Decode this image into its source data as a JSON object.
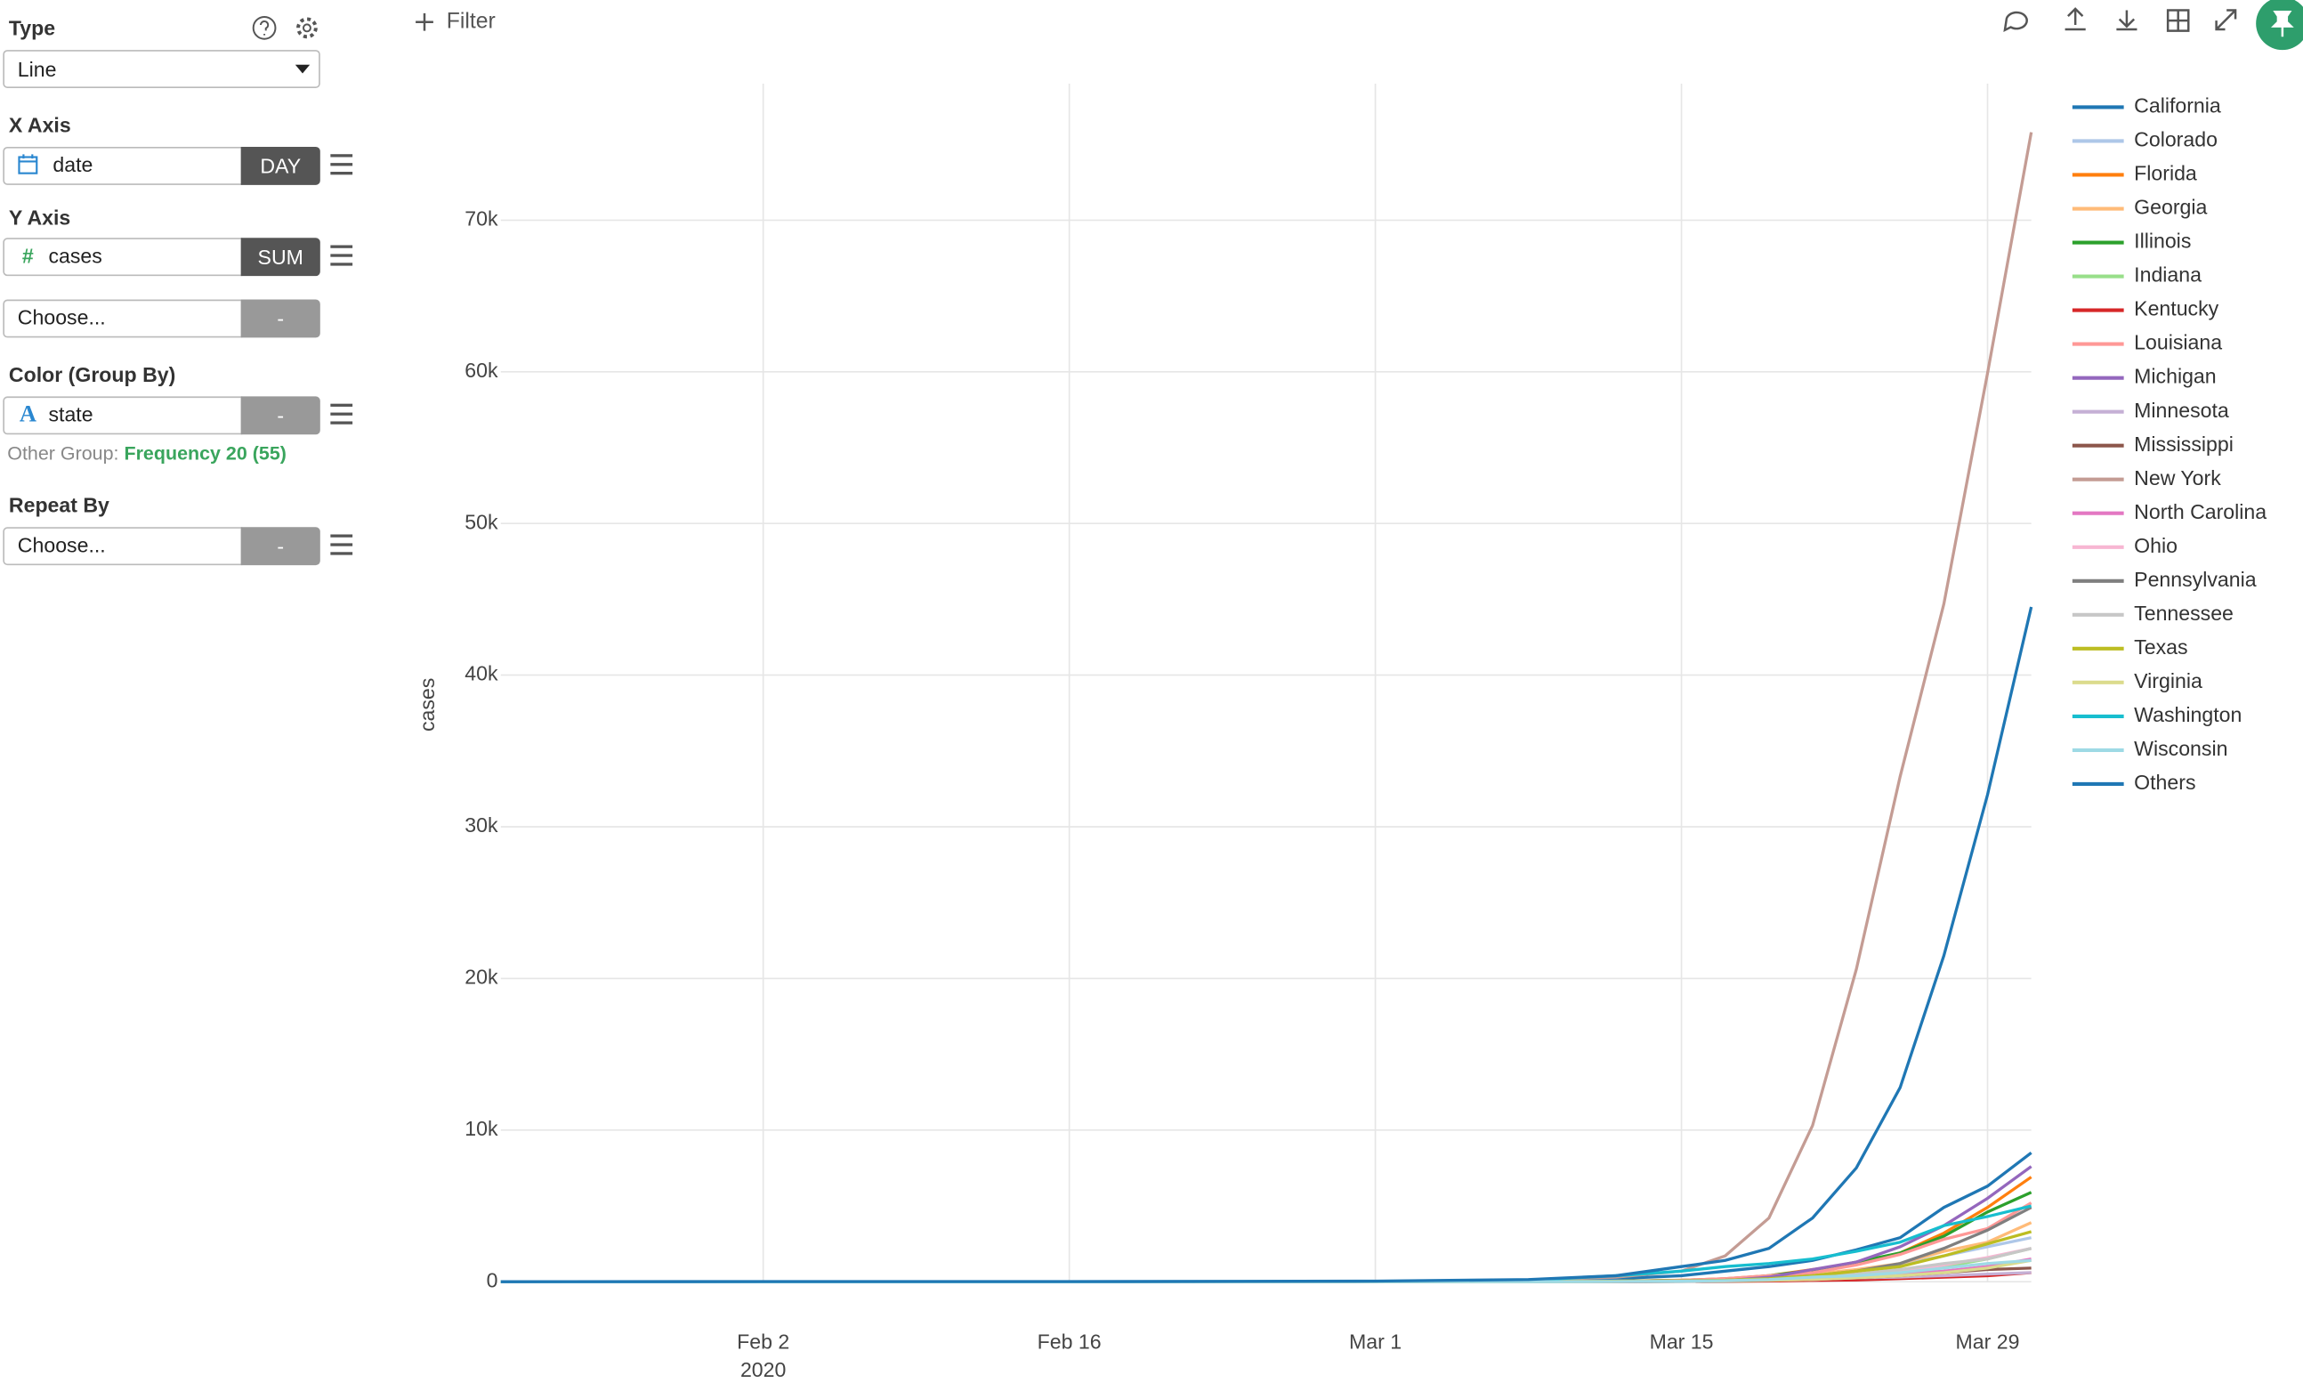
{
  "panel": {
    "type": {
      "label": "Type",
      "value": "Line"
    },
    "x_axis": {
      "label": "X Axis",
      "column": "date",
      "agg": "DAY"
    },
    "y_axis": {
      "label": "Y Axis",
      "icon": "#",
      "column": "cases",
      "agg": "SUM",
      "extra": "Choose...",
      "extra_agg": "-"
    },
    "color": {
      "label": "Color (Group By)",
      "icon": "A",
      "column": "state",
      "agg": "-",
      "other_group_label": "Other Group:",
      "other_group_value": "Frequency 20 (55)"
    },
    "repeat": {
      "label": "Repeat By",
      "column": "Choose...",
      "agg": "-"
    }
  },
  "toolbar": {
    "filter": "Filter"
  },
  "chart_data": {
    "type": "line",
    "y_label": "cases",
    "x": [
      "2020-01-21",
      "2020-02-02",
      "2020-02-16",
      "2020-03-01",
      "2020-03-08",
      "2020-03-12",
      "2020-03-15",
      "2020-03-17",
      "2020-03-19",
      "2020-03-21",
      "2020-03-23",
      "2020-03-25",
      "2020-03-27",
      "2020-03-29",
      "2020-03-31"
    ],
    "xlim": [
      "2020-01-21",
      "2020-03-31"
    ],
    "xticks": [
      {
        "value": "2020-02-02",
        "label": "Feb 2"
      },
      {
        "value": "2020-02-16",
        "label": "Feb 16"
      },
      {
        "value": "2020-03-01",
        "label": "Mar 1"
      },
      {
        "value": "2020-03-15",
        "label": "Mar 15"
      },
      {
        "value": "2020-03-29",
        "label": "Mar 29"
      }
    ],
    "x_year": "2020",
    "ylim": [
      0,
      79000
    ],
    "yticks": [
      0,
      {
        "value": 10000,
        "label": "10k"
      },
      {
        "value": 20000,
        "label": "20k"
      },
      {
        "value": 30000,
        "label": "30k"
      },
      {
        "value": 40000,
        "label": "40k"
      },
      {
        "value": 50000,
        "label": "50k"
      },
      {
        "value": 60000,
        "label": "60k"
      },
      {
        "value": 70000,
        "label": "70k"
      }
    ],
    "grid": true,
    "legend": "right",
    "series": [
      {
        "name": "California",
        "color": "#1f77b4",
        "values": [
          0,
          0,
          0,
          10,
          100,
          200,
          400,
          700,
          1000,
          1400,
          2100,
          2900,
          4900,
          6300,
          8500
        ]
      },
      {
        "name": "Colorado",
        "color": "#aec7e8",
        "values": [
          0,
          0,
          0,
          0,
          10,
          50,
          100,
          200,
          300,
          500,
          700,
          1100,
          1700,
          2300,
          2900
        ]
      },
      {
        "name": "Florida",
        "color": "#ff7f0e",
        "values": [
          0,
          0,
          0,
          0,
          10,
          30,
          100,
          200,
          400,
          800,
          1200,
          1900,
          3200,
          4900,
          6900
        ]
      },
      {
        "name": "Georgia",
        "color": "#ffbb78",
        "values": [
          0,
          0,
          0,
          0,
          10,
          30,
          100,
          150,
          300,
          500,
          800,
          1200,
          2000,
          2600,
          3900
        ]
      },
      {
        "name": "Illinois",
        "color": "#2ca02c",
        "values": [
          0,
          0,
          0,
          0,
          10,
          30,
          90,
          160,
          400,
          750,
          1300,
          1900,
          3000,
          4600,
          5900
        ]
      },
      {
        "name": "Indiana",
        "color": "#98df8a",
        "values": [
          0,
          0,
          0,
          0,
          0,
          10,
          20,
          30,
          60,
          200,
          400,
          500,
          1000,
          1500,
          2200
        ]
      },
      {
        "name": "Kentucky",
        "color": "#d62728",
        "values": [
          0,
          0,
          0,
          0,
          0,
          10,
          20,
          30,
          40,
          90,
          120,
          200,
          300,
          400,
          600
        ]
      },
      {
        "name": "Louisiana",
        "color": "#ff9896",
        "values": [
          0,
          0,
          0,
          0,
          0,
          20,
          100,
          200,
          400,
          600,
          1100,
          1800,
          2800,
          3500,
          5200
        ]
      },
      {
        "name": "Michigan",
        "color": "#9467bd",
        "values": [
          0,
          0,
          0,
          0,
          0,
          10,
          50,
          60,
          300,
          800,
          1300,
          2300,
          3700,
          5500,
          7600
        ]
      },
      {
        "name": "Minnesota",
        "color": "#c5b0d5",
        "values": [
          0,
          0,
          0,
          0,
          0,
          10,
          30,
          60,
          100,
          150,
          250,
          300,
          400,
          500,
          600
        ]
      },
      {
        "name": "Mississippi",
        "color": "#8c564b",
        "values": [
          0,
          0,
          0,
          0,
          0,
          0,
          10,
          30,
          80,
          200,
          250,
          400,
          600,
          800,
          900
        ]
      },
      {
        "name": "New York",
        "color": "#c49c94",
        "values": [
          0,
          0,
          0,
          0,
          100,
          300,
          700,
          1700,
          4200,
          10300,
          20600,
          33300,
          44700,
          59900,
          75800
        ]
      },
      {
        "name": "North Carolina",
        "color": "#e377c2",
        "values": [
          0,
          0,
          0,
          0,
          0,
          20,
          30,
          60,
          100,
          200,
          300,
          500,
          700,
          1000,
          1500
        ]
      },
      {
        "name": "Ohio",
        "color": "#f7b6d2",
        "values": [
          0,
          0,
          0,
          0,
          0,
          5,
          30,
          70,
          120,
          250,
          450,
          700,
          1100,
          1600,
          2200
        ]
      },
      {
        "name": "Pennsylvania",
        "color": "#7f7f7f",
        "values": [
          0,
          0,
          0,
          0,
          0,
          20,
          70,
          100,
          200,
          400,
          700,
          1200,
          2200,
          3400,
          4900
        ]
      },
      {
        "name": "Tennessee",
        "color": "#c7c7c7",
        "values": [
          0,
          0,
          0,
          0,
          0,
          10,
          30,
          70,
          150,
          300,
          500,
          800,
          1200,
          1500,
          2200
        ]
      },
      {
        "name": "Texas",
        "color": "#bcbd22",
        "values": [
          0,
          0,
          0,
          0,
          10,
          30,
          60,
          100,
          200,
          400,
          700,
          1000,
          1700,
          2500,
          3300
        ]
      },
      {
        "name": "Virginia",
        "color": "#dbdb8d",
        "values": [
          0,
          0,
          0,
          0,
          0,
          10,
          40,
          60,
          100,
          150,
          250,
          400,
          600,
          900,
          1400
        ]
      },
      {
        "name": "Washington",
        "color": "#17becf",
        "values": [
          0,
          0,
          0,
          20,
          100,
          400,
          700,
          1000,
          1200,
          1500,
          2000,
          2600,
          3700,
          4300,
          5000
        ]
      },
      {
        "name": "Wisconsin",
        "color": "#9edae5",
        "values": [
          0,
          0,
          0,
          0,
          0,
          10,
          30,
          70,
          150,
          300,
          400,
          600,
          900,
          1200,
          1400
        ]
      },
      {
        "name": "Others",
        "color": "#1f77b4",
        "values": [
          1,
          5,
          10,
          40,
          150,
          400,
          1000,
          1400,
          2200,
          4200,
          7500,
          12800,
          21500,
          32100,
          44500
        ]
      }
    ]
  }
}
